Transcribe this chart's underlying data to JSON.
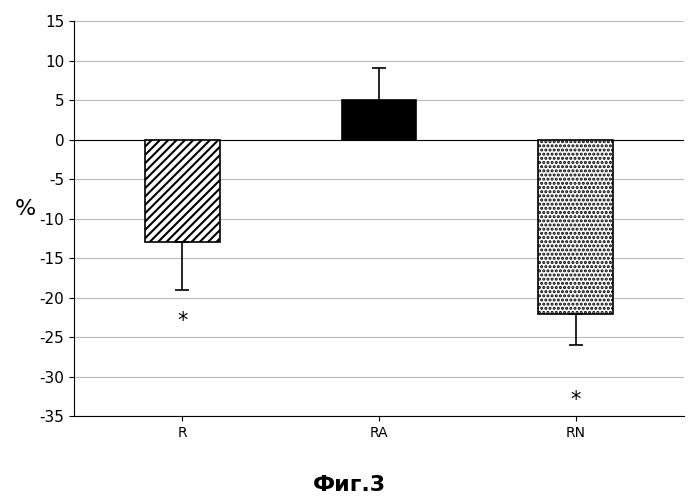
{
  "categories": [
    "R",
    "RA",
    "RN"
  ],
  "values": [
    -13.0,
    5.0,
    -22.0
  ],
  "errors_up": [
    0.0,
    4.0,
    0.0
  ],
  "errors_down": [
    6.0,
    0.0,
    4.0
  ],
  "bar_colors": [
    "white",
    "black",
    "white"
  ],
  "bar_hatches": [
    "////",
    "",
    "...."
  ],
  "bar_edgecolors": [
    "black",
    "black",
    "black"
  ],
  "ylim": [
    -35,
    15
  ],
  "yticks": [
    -35,
    -30,
    -25,
    -20,
    -15,
    -10,
    -5,
    0,
    5,
    10,
    15
  ],
  "ylabel": "%",
  "stars": [
    true,
    false,
    true
  ],
  "star_positions": [
    [
      -23
    ],
    [
      0
    ],
    [
      -33
    ]
  ],
  "title": "Фиг.3",
  "background_color": "#ffffff",
  "grid_color": "#bbbbbb",
  "bar_width": 0.38,
  "hatch_linewidth": 1.5
}
